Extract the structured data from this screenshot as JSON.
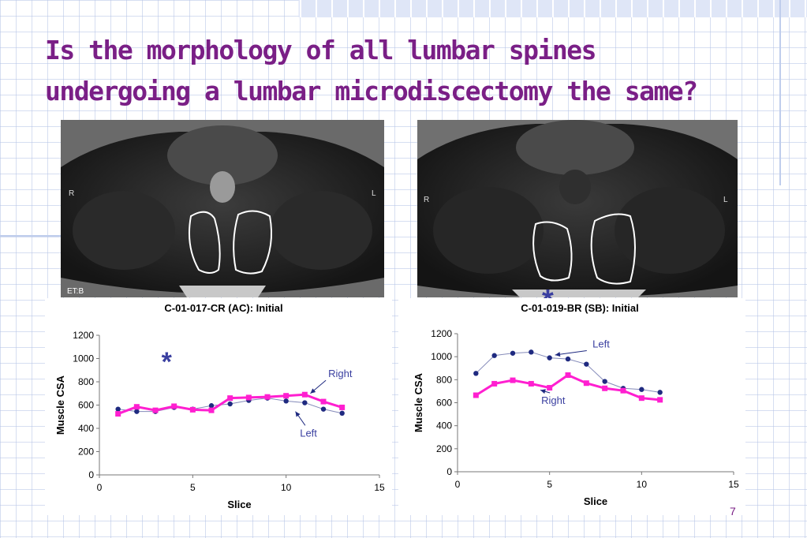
{
  "title_lines": [
    "Is the morphology of all lumbar spines",
    "undergoing a lumbar microdiscectomy the same?"
  ],
  "mri_left": {
    "right_marker": "R",
    "left_marker": "L",
    "corner_text": "ET:B"
  },
  "mri_right": {
    "right_marker": "R",
    "left_marker": "L"
  },
  "star": "*",
  "page_number": "7",
  "chart_data": [
    {
      "type": "line",
      "title": "C-01-017-CR (AC): Initial",
      "xlabel": "Slice",
      "ylabel": "Muscle CSA",
      "xlim": [
        0,
        15
      ],
      "ylim": [
        0,
        1200
      ],
      "xticks": [
        0,
        5,
        10,
        15
      ],
      "yticks": [
        0,
        200,
        400,
        600,
        800,
        1000,
        1200
      ],
      "grid": false,
      "series": [
        {
          "name": "Left",
          "color": "#1f2a80",
          "marker": "circle",
          "x": [
            1,
            2,
            3,
            4,
            5,
            6,
            7,
            8,
            9,
            10,
            11,
            12,
            13
          ],
          "values": [
            565,
            545,
            545,
            580,
            565,
            595,
            610,
            640,
            660,
            635,
            620,
            565,
            530
          ]
        },
        {
          "name": "Right",
          "color": "#ff1fd0",
          "marker": "square",
          "x": [
            1,
            2,
            3,
            4,
            5,
            6,
            7,
            8,
            9,
            10,
            11,
            12,
            13
          ],
          "values": [
            525,
            585,
            555,
            590,
            560,
            555,
            660,
            665,
            670,
            680,
            690,
            630,
            580
          ]
        }
      ],
      "annotations": [
        {
          "text": "Right",
          "x": 12.9,
          "y": 840,
          "arrow_to": [
            11.3,
            700
          ]
        },
        {
          "text": "Left",
          "x": 11.2,
          "y": 330,
          "arrow_to": [
            10.5,
            545
          ]
        },
        {
          "text": "*",
          "x": 3.6,
          "y": 990
        }
      ]
    },
    {
      "type": "line",
      "title": "C-01-019-BR (SB): Initial",
      "xlabel": "Slice",
      "ylabel": "Muscle CSA",
      "xlim": [
        0,
        15
      ],
      "ylim": [
        0,
        1200
      ],
      "xticks": [
        0,
        5,
        10,
        15
      ],
      "yticks": [
        0,
        200,
        400,
        600,
        800,
        1000,
        1200
      ],
      "grid": false,
      "series": [
        {
          "name": "Left",
          "color": "#1f2a80",
          "marker": "circle",
          "x": [
            1,
            2,
            3,
            4,
            5,
            6,
            7,
            8,
            9,
            10,
            11
          ],
          "values": [
            855,
            1010,
            1030,
            1040,
            990,
            980,
            935,
            785,
            725,
            715,
            690
          ]
        },
        {
          "name": "Right",
          "color": "#ff1fd0",
          "marker": "square",
          "x": [
            1,
            2,
            3,
            4,
            5,
            6,
            7,
            8,
            9,
            10,
            11
          ],
          "values": [
            665,
            765,
            795,
            765,
            730,
            840,
            770,
            725,
            705,
            640,
            625
          ]
        }
      ],
      "annotations": [
        {
          "text": "Left",
          "x": 7.8,
          "y": 1080,
          "arrow_to": [
            5.3,
            1015
          ]
        },
        {
          "text": "Right",
          "x": 5.2,
          "y": 590,
          "arrow_to": [
            4.5,
            710
          ]
        }
      ]
    }
  ]
}
